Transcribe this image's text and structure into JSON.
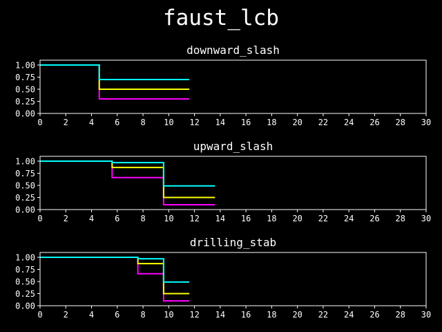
{
  "figure": {
    "title": "faust_lcb",
    "background": "#000000",
    "foreground": "#ffffff"
  },
  "chart_data": [
    {
      "type": "line",
      "step": "post",
      "title": "downward_slash",
      "xlim": [
        0,
        30
      ],
      "ylim": [
        0,
        1.1
      ],
      "xticks": [
        0,
        2,
        4,
        6,
        8,
        10,
        12,
        14,
        16,
        18,
        20,
        22,
        24,
        26,
        28,
        30
      ],
      "yticks": [
        "0.00",
        "0.25",
        "0.50",
        "0.75",
        "1.00"
      ],
      "series": [
        {
          "color": "#ff00ff",
          "x": [
            0,
            4.6,
            11.6
          ],
          "y": [
            1.0,
            0.3,
            0.3
          ]
        },
        {
          "color": "#ffff00",
          "x": [
            0,
            4.6,
            11.6
          ],
          "y": [
            1.0,
            0.5,
            0.5
          ]
        },
        {
          "color": "#00ffff",
          "x": [
            0,
            4.6,
            11.6
          ],
          "y": [
            1.0,
            0.7,
            0.7
          ]
        }
      ]
    },
    {
      "type": "line",
      "step": "post",
      "title": "upward_slash",
      "xlim": [
        0,
        30
      ],
      "ylim": [
        0,
        1.1
      ],
      "xticks": [
        0,
        2,
        4,
        6,
        8,
        10,
        12,
        14,
        16,
        18,
        20,
        22,
        24,
        26,
        28,
        30
      ],
      "yticks": [
        "0.00",
        "0.25",
        "0.50",
        "0.75",
        "1.00"
      ],
      "series": [
        {
          "color": "#ff00ff",
          "x": [
            0,
            5.6,
            9.6,
            13.6
          ],
          "y": [
            1.0,
            0.66,
            0.1,
            0.1
          ]
        },
        {
          "color": "#ffff00",
          "x": [
            0,
            5.6,
            9.6,
            13.6
          ],
          "y": [
            1.0,
            0.87,
            0.25,
            0.25
          ]
        },
        {
          "color": "#00ffff",
          "x": [
            0,
            5.6,
            9.6,
            13.6
          ],
          "y": [
            1.0,
            0.97,
            0.49,
            0.49
          ]
        }
      ]
    },
    {
      "type": "line",
      "step": "post",
      "title": "drilling_stab",
      "xlim": [
        0,
        30
      ],
      "ylim": [
        0,
        1.1
      ],
      "xticks": [
        0,
        2,
        4,
        6,
        8,
        10,
        12,
        14,
        16,
        18,
        20,
        22,
        24,
        26,
        28,
        30
      ],
      "yticks": [
        "0.00",
        "0.25",
        "0.50",
        "0.75",
        "1.00"
      ],
      "series": [
        {
          "color": "#ff00ff",
          "x": [
            0,
            7.6,
            9.6,
            11.6
          ],
          "y": [
            1.0,
            0.66,
            0.1,
            0.1
          ]
        },
        {
          "color": "#ffff00",
          "x": [
            0,
            7.6,
            9.6,
            11.6
          ],
          "y": [
            1.0,
            0.87,
            0.25,
            0.25
          ]
        },
        {
          "color": "#00ffff",
          "x": [
            0,
            7.6,
            9.6,
            11.6
          ],
          "y": [
            1.0,
            0.97,
            0.49,
            0.49
          ]
        }
      ]
    }
  ]
}
